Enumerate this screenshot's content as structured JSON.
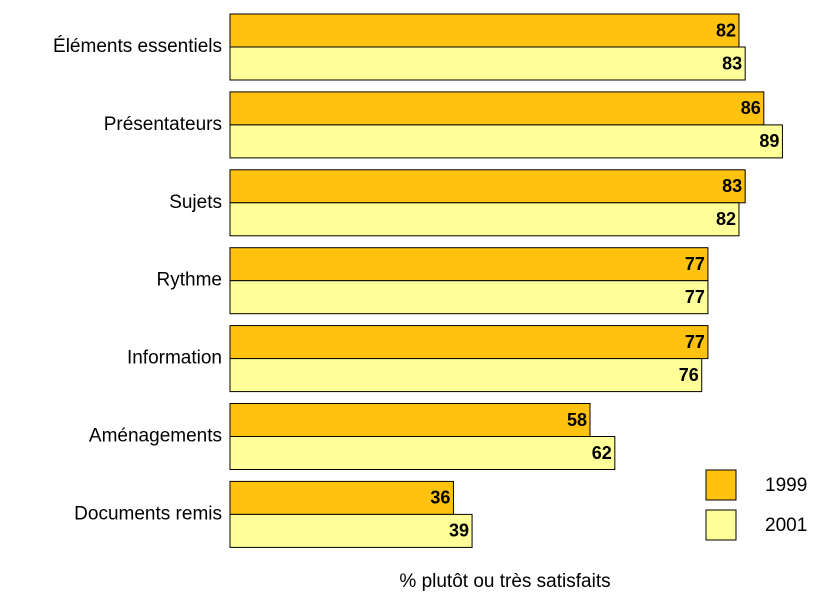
{
  "chart_data": {
    "type": "bar",
    "orientation": "horizontal",
    "x_label": "% plutôt ou très satisfaits",
    "categories": [
      "Éléments essentiels",
      "Présentateurs",
      "Sujets",
      "Rythme",
      "Information",
      "Aménagements",
      "Documents remis"
    ],
    "series": [
      {
        "name": "1999",
        "color": "#ffc20e",
        "values": [
          82,
          86,
          83,
          77,
          77,
          58,
          36
        ]
      },
      {
        "name": "2001",
        "color": "#ffff99",
        "values": [
          83,
          89,
          82,
          77,
          76,
          62,
          39
        ]
      }
    ],
    "xlim": [
      0,
      100
    ],
    "legend": "lower right",
    "grid": false
  }
}
